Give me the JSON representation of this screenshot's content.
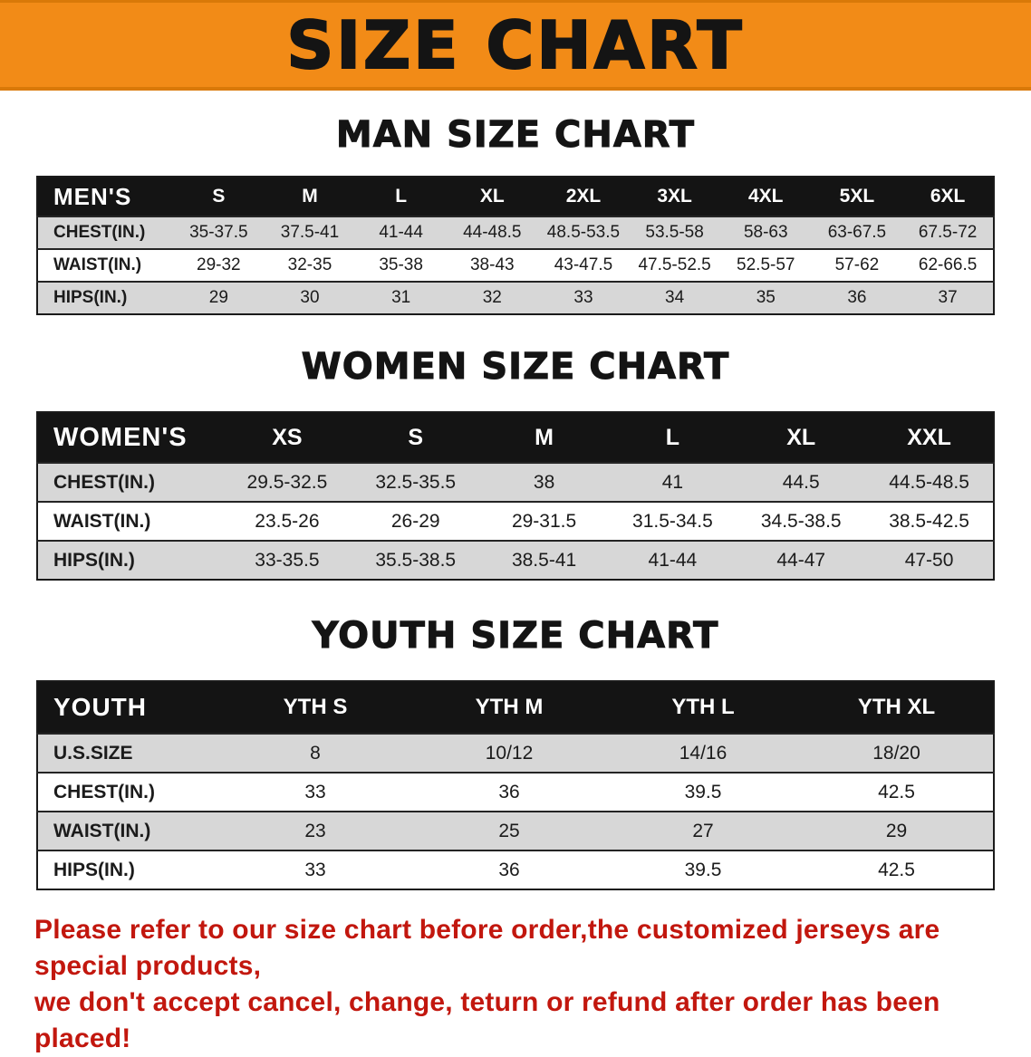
{
  "banner": {
    "title": "SIZE CHART",
    "bg_color": "#f28b17"
  },
  "sections": [
    {
      "id": "men",
      "heading": "MAN SIZE CHART",
      "table": {
        "header": [
          "MEN'S",
          "S",
          "M",
          "L",
          "XL",
          "2XL",
          "3XL",
          "4XL",
          "5XL",
          "6XL"
        ],
        "rows": [
          [
            "CHEST(IN.)",
            "35-37.5",
            "37.5-41",
            "41-44",
            "44-48.5",
            "48.5-53.5",
            "53.5-58",
            "58-63",
            "63-67.5",
            "67.5-72"
          ],
          [
            "WAIST(IN.)",
            "29-32",
            "32-35",
            "35-38",
            "38-43",
            "43-47.5",
            "47.5-52.5",
            "52.5-57",
            "57-62",
            "62-66.5"
          ],
          [
            "HIPS(IN.)",
            "29",
            "30",
            "31",
            "32",
            "33",
            "34",
            "35",
            "36",
            "37"
          ]
        ]
      }
    },
    {
      "id": "women",
      "heading": "WOMEN SIZE CHART",
      "table": {
        "header": [
          "WOMEN'S",
          "XS",
          "S",
          "M",
          "L",
          "XL",
          "XXL"
        ],
        "rows": [
          [
            "CHEST(IN.)",
            "29.5-32.5",
            "32.5-35.5",
            "38",
            "41",
            "44.5",
            "44.5-48.5"
          ],
          [
            "WAIST(IN.)",
            "23.5-26",
            "26-29",
            "29-31.5",
            "31.5-34.5",
            "34.5-38.5",
            "38.5-42.5"
          ],
          [
            "HIPS(IN.)",
            "33-35.5",
            "35.5-38.5",
            "38.5-41",
            "41-44",
            "44-47",
            "47-50"
          ]
        ]
      }
    },
    {
      "id": "youth",
      "heading": "YOUTH SIZE CHART",
      "table": {
        "header": [
          "YOUTH",
          "YTH S",
          "YTH M",
          "YTH L",
          "YTH XL"
        ],
        "rows": [
          [
            "U.S.SIZE",
            "8",
            "10/12",
            "14/16",
            "18/20"
          ],
          [
            "CHEST(IN.)",
            "33",
            "36",
            "39.5",
            "42.5"
          ],
          [
            "WAIST(IN.)",
            "23",
            "25",
            "27",
            "29"
          ],
          [
            "HIPS(IN.)",
            "33",
            "36",
            "39.5",
            "42.5"
          ]
        ]
      }
    }
  ],
  "footer": {
    "lines": [
      "Please refer to our size chart before order,the customized jerseys are special products,",
      "we don't accept cancel, change, teturn or refund after order has been placed!"
    ],
    "color": "#c2170e"
  }
}
